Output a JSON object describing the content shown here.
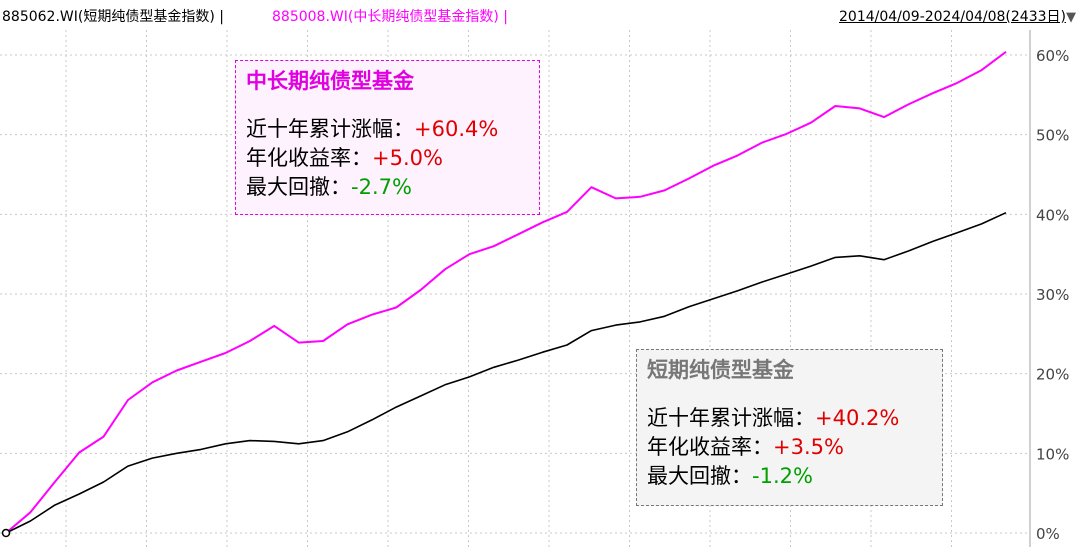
{
  "header": {
    "series_a": "885062.WI(短期纯债型基金指数)",
    "separator_a": "|",
    "series_b": "885008.WI(中长期纯债型基金指数)",
    "separator_b": "|",
    "date_range": "2014/04/09-2024/04/08(2433日)",
    "dropdown_icon": "triangle-down-icon"
  },
  "box_long": {
    "title": "中长期纯债型基金",
    "cum_label": "近十年累计涨幅：",
    "cum_value": "+60.4%",
    "ann_label": "年化收益率：",
    "ann_value": "+5.0%",
    "dd_label": "最大回撤：",
    "dd_value": "-2.7%"
  },
  "box_short": {
    "title": "短期纯债型基金",
    "cum_label": "近十年累计涨幅：",
    "cum_value": "+40.2%",
    "ann_label": "年化收益率：",
    "ann_value": "+3.5%",
    "dd_label": "最大回撤：",
    "dd_value": "-1.2%"
  },
  "colors": {
    "long": "#ff00ff",
    "short": "#000000",
    "grid": "#c8c8c8",
    "positive": "#e00000",
    "negative": "#00a000"
  },
  "chart_data": {
    "type": "line",
    "title": "",
    "xlabel": "",
    "ylabel": "",
    "ylim": [
      0,
      60
    ],
    "yticks": [
      0,
      10,
      20,
      30,
      40,
      50,
      60
    ],
    "ytick_labels": [
      "0%",
      "10%",
      "20%",
      "30%",
      "40%",
      "50%",
      "60%"
    ],
    "grid": true,
    "x_range": [
      "2014/04/09",
      "2024/04/08"
    ],
    "x": [
      "2014-04",
      "2014-07",
      "2014-10",
      "2015-01",
      "2015-04",
      "2015-07",
      "2015-10",
      "2016-01",
      "2016-04",
      "2016-07",
      "2016-10",
      "2017-01",
      "2017-04",
      "2017-07",
      "2017-10",
      "2018-01",
      "2018-04",
      "2018-07",
      "2018-10",
      "2019-01",
      "2019-04",
      "2019-07",
      "2019-10",
      "2020-01",
      "2020-04",
      "2020-07",
      "2020-10",
      "2021-01",
      "2021-04",
      "2021-07",
      "2021-10",
      "2022-01",
      "2022-04",
      "2022-07",
      "2022-10",
      "2022-11",
      "2023-01",
      "2023-04",
      "2023-07",
      "2023-10",
      "2024-01",
      "2024-04"
    ],
    "series": [
      {
        "name": "885008.WI(中长期纯债型基金指数)",
        "values": [
          0,
          2.6,
          6.4,
          10.1,
          12.1,
          16.7,
          18.9,
          20.4,
          21.5,
          22.6,
          24.1,
          26.0,
          23.9,
          24.1,
          26.2,
          27.4,
          28.3,
          30.5,
          33.1,
          35.0,
          36.0,
          37.5,
          39.0,
          40.3,
          43.4,
          42.0,
          42.2,
          43.0,
          44.5,
          46.1,
          47.4,
          49.0,
          50.1,
          51.5,
          53.6,
          53.3,
          52.2,
          53.8,
          55.2,
          56.5,
          58.1,
          60.4
        ]
      },
      {
        "name": "885062.WI(短期纯债型基金指数)",
        "values": [
          0,
          1.5,
          3.5,
          4.9,
          6.4,
          8.4,
          9.4,
          10.0,
          10.5,
          11.2,
          11.6,
          11.5,
          11.2,
          11.6,
          12.7,
          14.2,
          15.8,
          17.2,
          18.6,
          19.6,
          20.8,
          21.7,
          22.7,
          23.6,
          25.4,
          26.1,
          26.5,
          27.2,
          28.4,
          29.4,
          30.4,
          31.5,
          32.5,
          33.5,
          34.6,
          34.8,
          34.3,
          35.4,
          36.6,
          37.7,
          38.8,
          40.2
        ]
      }
    ]
  }
}
